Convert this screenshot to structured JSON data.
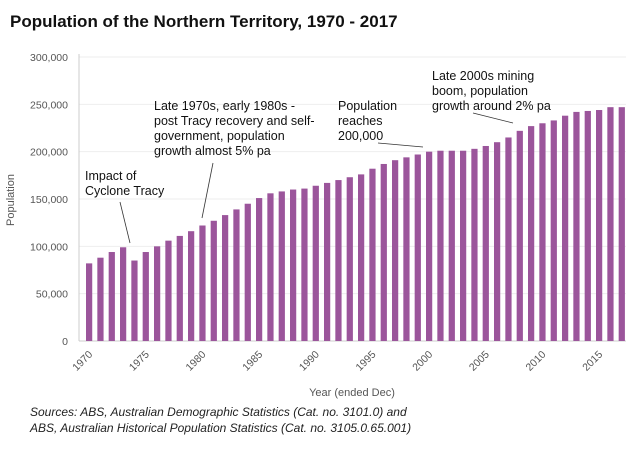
{
  "chart_data": {
    "type": "bar",
    "title": "Population of the Northern Territory, 1970 - 2017",
    "xlabel": "Year (ended Dec)",
    "ylabel": "Population",
    "ylim": [
      0,
      300000
    ],
    "yticks": [
      "0",
      "50,000",
      "100,000",
      "150,000",
      "200,000",
      "250,000",
      "300,000"
    ],
    "xticks": [
      "1970",
      "1975",
      "1980",
      "1985",
      "1990",
      "1995",
      "2000",
      "2005",
      "2010",
      "2015"
    ],
    "grid": true,
    "bar_color": "#9b559b",
    "categories": [
      1970,
      1971,
      1972,
      1973,
      1974,
      1975,
      1976,
      1977,
      1978,
      1979,
      1980,
      1981,
      1982,
      1983,
      1984,
      1985,
      1986,
      1987,
      1988,
      1989,
      1990,
      1991,
      1992,
      1993,
      1994,
      1995,
      1996,
      1997,
      1998,
      1999,
      2000,
      2001,
      2002,
      2003,
      2004,
      2005,
      2006,
      2007,
      2008,
      2009,
      2010,
      2011,
      2012,
      2013,
      2014,
      2015,
      2016,
      2017
    ],
    "values": [
      82000,
      88000,
      94000,
      99000,
      85000,
      94000,
      100000,
      106000,
      111000,
      116000,
      122000,
      127000,
      133000,
      139000,
      145000,
      151000,
      156000,
      158000,
      160000,
      161000,
      164000,
      167000,
      170000,
      173000,
      176000,
      182000,
      187000,
      191000,
      194000,
      197000,
      200000,
      201000,
      201000,
      201000,
      203000,
      206000,
      210000,
      215000,
      222000,
      227000,
      230000,
      233000,
      238000,
      242000,
      243000,
      244000,
      247000,
      247000
    ],
    "annotations": [
      {
        "lines": [
          "Impact of",
          "Cyclone Tracy"
        ]
      },
      {
        "lines": [
          "Late 1970s, early 1980s -",
          "post Tracy recovery and self-",
          "government, population",
          "growth almost 5% pa"
        ]
      },
      {
        "lines": [
          "Population",
          "reaches",
          "200,000"
        ]
      },
      {
        "lines": [
          "Late 2000s mining",
          "boom, population",
          "growth around 2% pa"
        ]
      }
    ]
  },
  "sources": [
    "Sources:  ABS, Australian Demographic Statistics (Cat. no. 3101.0) and",
    "ABS, Australian Historical Population Statistics (Cat. no. 3105.0.65.001)"
  ]
}
